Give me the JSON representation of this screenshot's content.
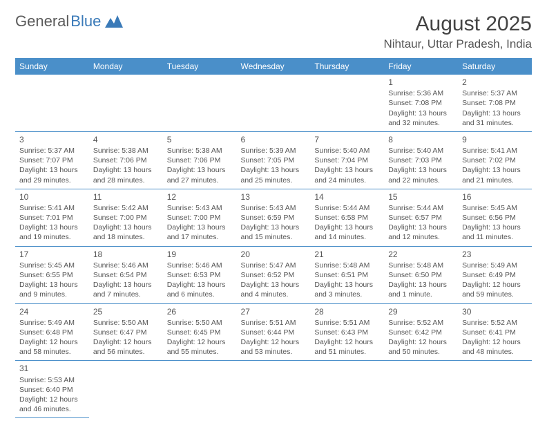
{
  "brand": {
    "part1": "General",
    "part2": "Blue"
  },
  "title": "August 2025",
  "location": "Nihtaur, Uttar Pradesh, India",
  "colors": {
    "header_bg": "#4a8fc9",
    "header_text": "#ffffff",
    "border": "#4a8fc9",
    "text": "#555555",
    "logo_gray": "#5a5a5a",
    "logo_blue": "#3a7ab8"
  },
  "day_headers": [
    "Sunday",
    "Monday",
    "Tuesday",
    "Wednesday",
    "Thursday",
    "Friday",
    "Saturday"
  ],
  "weeks": [
    [
      null,
      null,
      null,
      null,
      null,
      {
        "n": "1",
        "sr": "5:36 AM",
        "ss": "7:08 PM",
        "dl": "13 hours and 32 minutes."
      },
      {
        "n": "2",
        "sr": "5:37 AM",
        "ss": "7:08 PM",
        "dl": "13 hours and 31 minutes."
      }
    ],
    [
      {
        "n": "3",
        "sr": "5:37 AM",
        "ss": "7:07 PM",
        "dl": "13 hours and 29 minutes."
      },
      {
        "n": "4",
        "sr": "5:38 AM",
        "ss": "7:06 PM",
        "dl": "13 hours and 28 minutes."
      },
      {
        "n": "5",
        "sr": "5:38 AM",
        "ss": "7:06 PM",
        "dl": "13 hours and 27 minutes."
      },
      {
        "n": "6",
        "sr": "5:39 AM",
        "ss": "7:05 PM",
        "dl": "13 hours and 25 minutes."
      },
      {
        "n": "7",
        "sr": "5:40 AM",
        "ss": "7:04 PM",
        "dl": "13 hours and 24 minutes."
      },
      {
        "n": "8",
        "sr": "5:40 AM",
        "ss": "7:03 PM",
        "dl": "13 hours and 22 minutes."
      },
      {
        "n": "9",
        "sr": "5:41 AM",
        "ss": "7:02 PM",
        "dl": "13 hours and 21 minutes."
      }
    ],
    [
      {
        "n": "10",
        "sr": "5:41 AM",
        "ss": "7:01 PM",
        "dl": "13 hours and 19 minutes."
      },
      {
        "n": "11",
        "sr": "5:42 AM",
        "ss": "7:00 PM",
        "dl": "13 hours and 18 minutes."
      },
      {
        "n": "12",
        "sr": "5:43 AM",
        "ss": "7:00 PM",
        "dl": "13 hours and 17 minutes."
      },
      {
        "n": "13",
        "sr": "5:43 AM",
        "ss": "6:59 PM",
        "dl": "13 hours and 15 minutes."
      },
      {
        "n": "14",
        "sr": "5:44 AM",
        "ss": "6:58 PM",
        "dl": "13 hours and 14 minutes."
      },
      {
        "n": "15",
        "sr": "5:44 AM",
        "ss": "6:57 PM",
        "dl": "13 hours and 12 minutes."
      },
      {
        "n": "16",
        "sr": "5:45 AM",
        "ss": "6:56 PM",
        "dl": "13 hours and 11 minutes."
      }
    ],
    [
      {
        "n": "17",
        "sr": "5:45 AM",
        "ss": "6:55 PM",
        "dl": "13 hours and 9 minutes."
      },
      {
        "n": "18",
        "sr": "5:46 AM",
        "ss": "6:54 PM",
        "dl": "13 hours and 7 minutes."
      },
      {
        "n": "19",
        "sr": "5:46 AM",
        "ss": "6:53 PM",
        "dl": "13 hours and 6 minutes."
      },
      {
        "n": "20",
        "sr": "5:47 AM",
        "ss": "6:52 PM",
        "dl": "13 hours and 4 minutes."
      },
      {
        "n": "21",
        "sr": "5:48 AM",
        "ss": "6:51 PM",
        "dl": "13 hours and 3 minutes."
      },
      {
        "n": "22",
        "sr": "5:48 AM",
        "ss": "6:50 PM",
        "dl": "13 hours and 1 minute."
      },
      {
        "n": "23",
        "sr": "5:49 AM",
        "ss": "6:49 PM",
        "dl": "12 hours and 59 minutes."
      }
    ],
    [
      {
        "n": "24",
        "sr": "5:49 AM",
        "ss": "6:48 PM",
        "dl": "12 hours and 58 minutes."
      },
      {
        "n": "25",
        "sr": "5:50 AM",
        "ss": "6:47 PM",
        "dl": "12 hours and 56 minutes."
      },
      {
        "n": "26",
        "sr": "5:50 AM",
        "ss": "6:45 PM",
        "dl": "12 hours and 55 minutes."
      },
      {
        "n": "27",
        "sr": "5:51 AM",
        "ss": "6:44 PM",
        "dl": "12 hours and 53 minutes."
      },
      {
        "n": "28",
        "sr": "5:51 AM",
        "ss": "6:43 PM",
        "dl": "12 hours and 51 minutes."
      },
      {
        "n": "29",
        "sr": "5:52 AM",
        "ss": "6:42 PM",
        "dl": "12 hours and 50 minutes."
      },
      {
        "n": "30",
        "sr": "5:52 AM",
        "ss": "6:41 PM",
        "dl": "12 hours and 48 minutes."
      }
    ],
    [
      {
        "n": "31",
        "sr": "5:53 AM",
        "ss": "6:40 PM",
        "dl": "12 hours and 46 minutes."
      },
      null,
      null,
      null,
      null,
      null,
      null
    ]
  ],
  "labels": {
    "sunrise": "Sunrise: ",
    "sunset": "Sunset: ",
    "daylight": "Daylight: "
  }
}
